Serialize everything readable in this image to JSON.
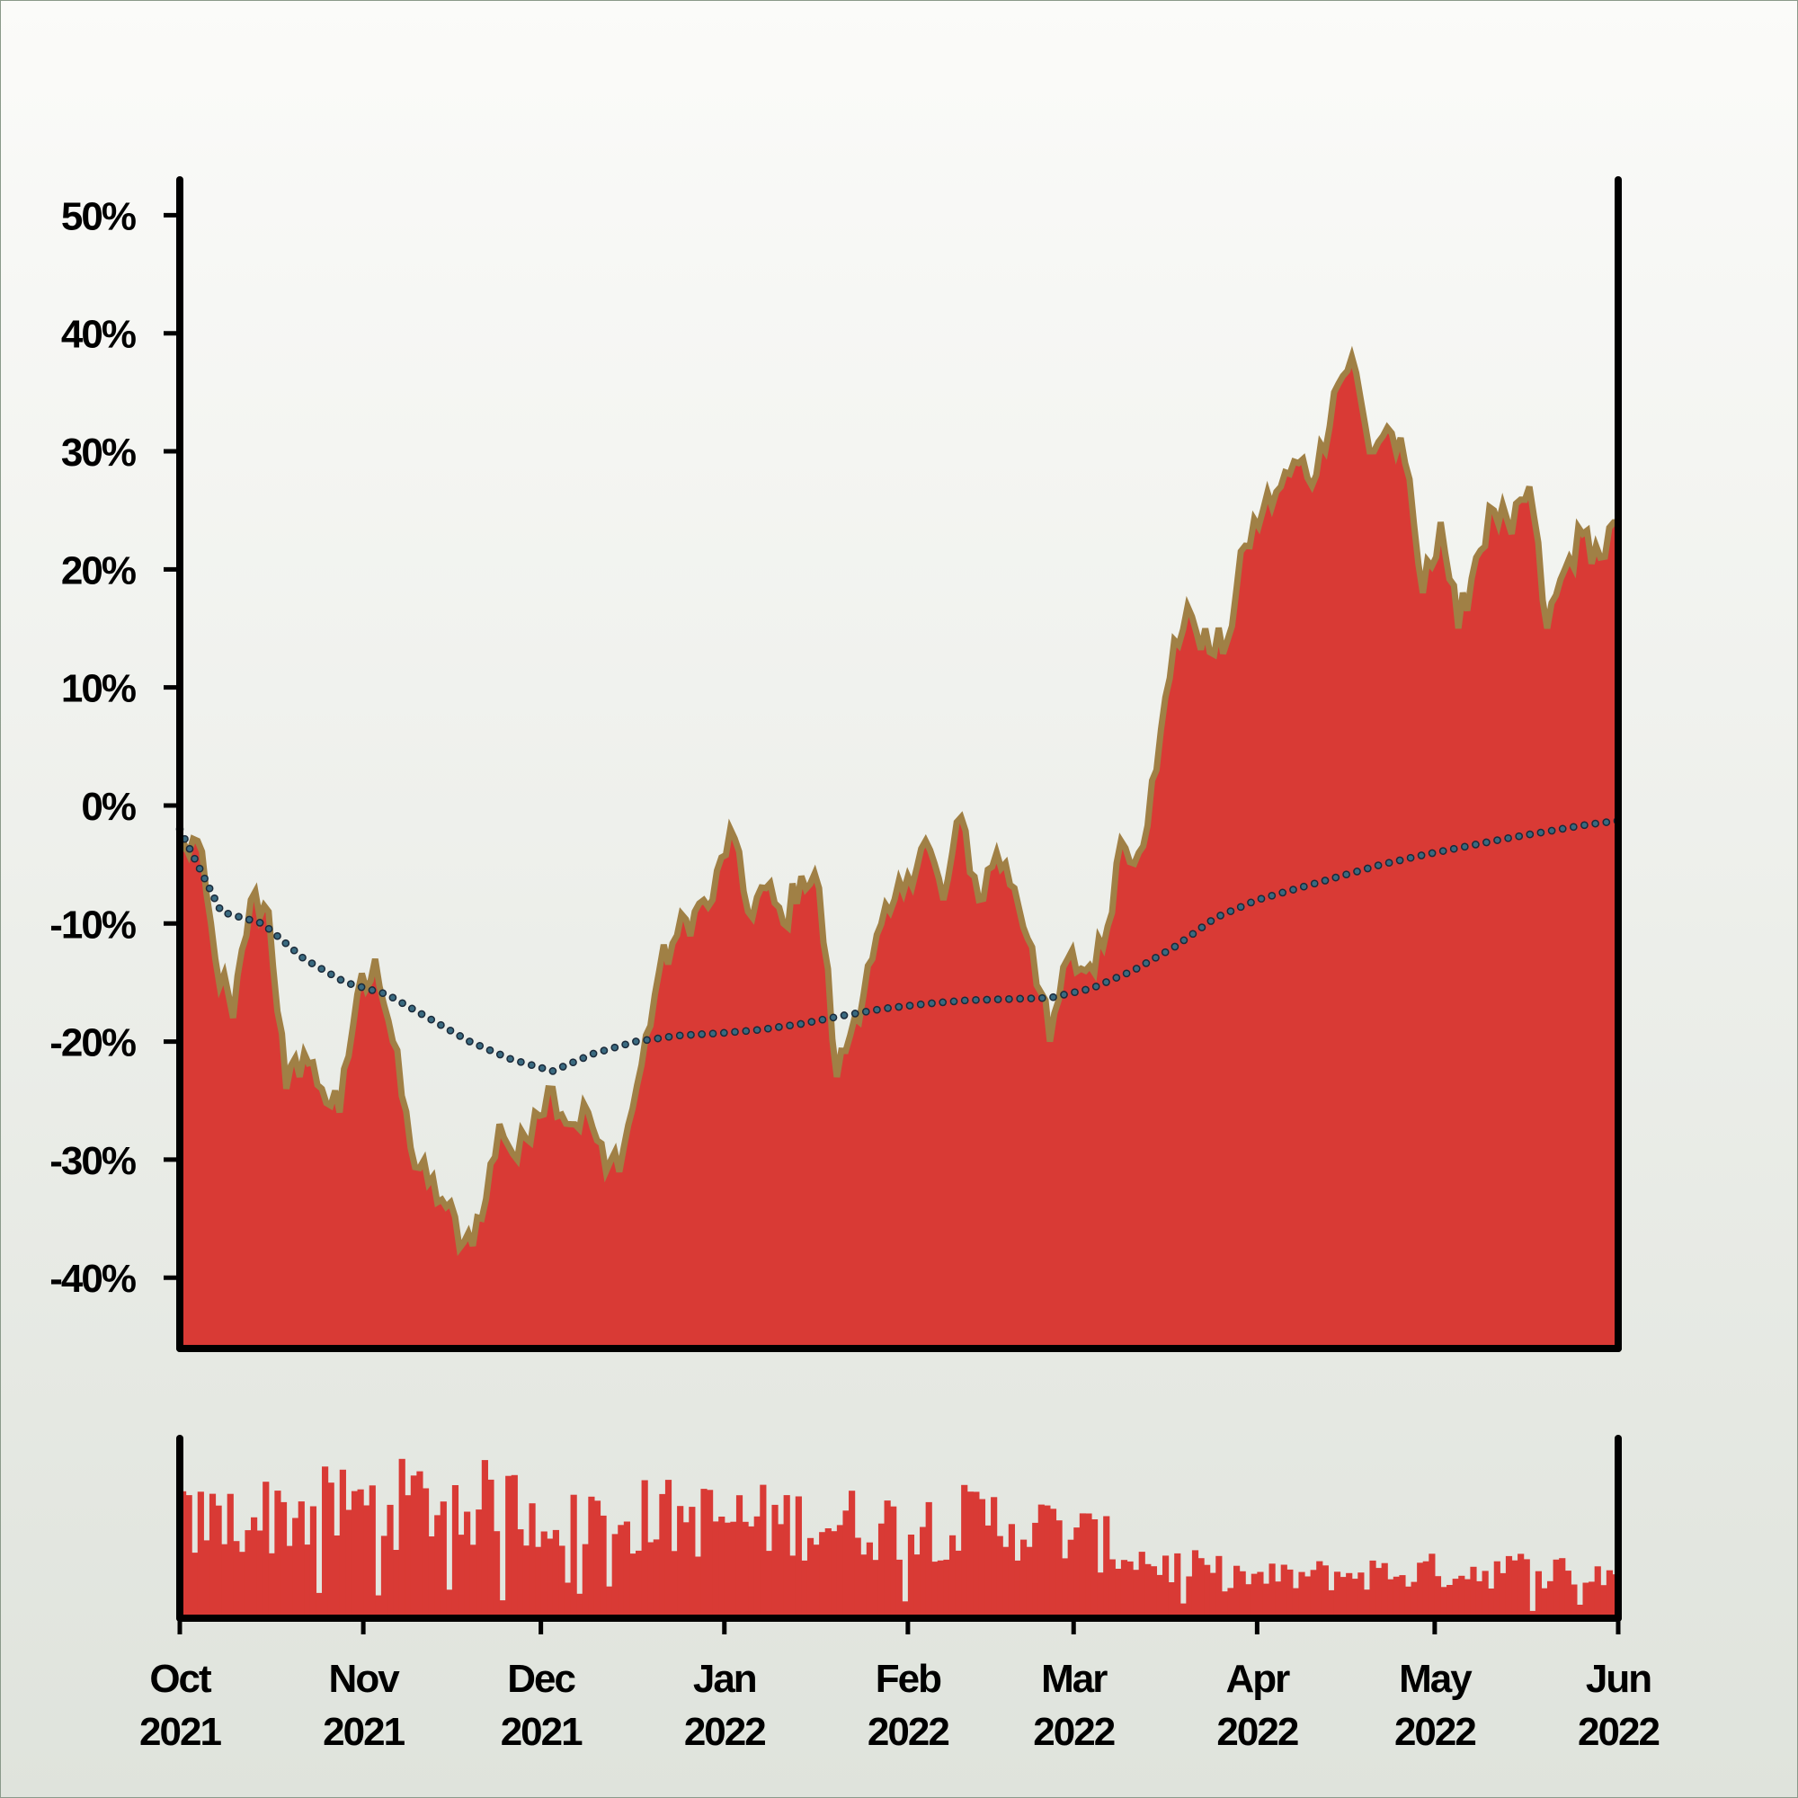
{
  "chart_data": [
    {
      "type": "area",
      "title": "",
      "xlabel": "",
      "ylabel": "",
      "xlim": [
        "2021-10-01",
        "2022-06-01"
      ],
      "ylim": [
        -46,
        53
      ],
      "yticks": [
        -40,
        -30,
        -20,
        -10,
        0,
        10,
        20,
        30,
        40,
        50
      ],
      "ytick_labels": [
        "-40%",
        "-30%",
        "-20%",
        "-10%",
        "0%",
        "10%",
        "20%",
        "30%",
        "40%",
        "50%"
      ],
      "grid": false,
      "legend": "none",
      "series": [
        {
          "kind": "area",
          "fill_color": "#d93a35",
          "edge_color": "#a08045",
          "x": [
            "2021-10-01",
            "2021-10-04",
            "2021-10-07",
            "2021-10-10",
            "2021-10-13",
            "2021-10-16",
            "2021-10-19",
            "2021-10-22",
            "2021-10-25",
            "2021-10-28",
            "2021-10-31",
            "2021-11-03",
            "2021-11-06",
            "2021-11-09",
            "2021-11-12",
            "2021-11-15",
            "2021-11-18",
            "2021-11-21",
            "2021-11-24",
            "2021-11-27",
            "2021-11-30",
            "2021-12-03",
            "2021-12-06",
            "2021-12-09",
            "2021-12-12",
            "2021-12-15",
            "2021-12-18",
            "2021-12-21",
            "2021-12-24",
            "2021-12-27",
            "2021-12-30",
            "2022-01-02",
            "2022-01-05",
            "2022-01-08",
            "2022-01-11",
            "2022-01-14",
            "2022-01-17",
            "2022-01-20",
            "2022-01-23",
            "2022-01-26",
            "2022-01-29",
            "2022-02-01",
            "2022-02-04",
            "2022-02-07",
            "2022-02-10",
            "2022-02-13",
            "2022-02-16",
            "2022-02-19",
            "2022-02-22",
            "2022-02-25",
            "2022-02-28",
            "2022-03-03",
            "2022-03-06",
            "2022-03-09",
            "2022-03-12",
            "2022-03-15",
            "2022-03-18",
            "2022-03-21",
            "2022-03-24",
            "2022-03-27",
            "2022-03-30",
            "2022-04-02",
            "2022-04-05",
            "2022-04-08",
            "2022-04-11",
            "2022-04-14",
            "2022-04-17",
            "2022-04-20",
            "2022-04-23",
            "2022-04-26",
            "2022-04-29",
            "2022-05-02",
            "2022-05-05",
            "2022-05-08",
            "2022-05-11",
            "2022-05-14",
            "2022-05-17",
            "2022-05-20",
            "2022-05-23",
            "2022-05-26",
            "2022-05-29",
            "2022-06-01"
          ],
          "values": [
            -4,
            -3,
            -13,
            -18,
            -8,
            -9,
            -24,
            -21,
            -24,
            -26,
            -16,
            -13,
            -20,
            -29,
            -32,
            -34,
            -37,
            -35,
            -27,
            -30,
            -26,
            -24,
            -27,
            -26,
            -31,
            -29,
            -22,
            -14,
            -11,
            -9,
            -8,
            -2,
            -9,
            -7,
            -10,
            -6,
            -7,
            -23,
            -18,
            -13,
            -9,
            -6,
            -3,
            -8,
            -1,
            -8,
            -4,
            -7,
            -12,
            -20,
            -13,
            -14,
            -12,
            -3,
            -4,
            3,
            14,
            16,
            13,
            14,
            22,
            25,
            27,
            29,
            28,
            35,
            38,
            30,
            32,
            29,
            18,
            24,
            15,
            21,
            25,
            23,
            27,
            15,
            20,
            23,
            21,
            24
          ]
        },
        {
          "kind": "dotted-line",
          "color": "#1a2a3a",
          "x": [
            "2021-10-01",
            "2021-10-08",
            "2021-10-15",
            "2021-10-22",
            "2021-10-29",
            "2021-11-05",
            "2021-11-12",
            "2021-11-19",
            "2021-11-26",
            "2021-12-03",
            "2021-12-10",
            "2021-12-17",
            "2021-12-24",
            "2021-12-31",
            "2022-01-07",
            "2022-01-14",
            "2022-01-21",
            "2022-01-28",
            "2022-02-04",
            "2022-02-11",
            "2022-02-18",
            "2022-02-25",
            "2022-03-04",
            "2022-03-11",
            "2022-03-18",
            "2022-03-25",
            "2022-04-01",
            "2022-04-08",
            "2022-04-15",
            "2022-04-22",
            "2022-04-29",
            "2022-05-06",
            "2022-05-13",
            "2022-05-20",
            "2022-05-27",
            "2022-06-01"
          ],
          "values": [
            -2,
            -9,
            -10,
            -13,
            -15,
            -16,
            -18,
            -20,
            -21.5,
            -22.5,
            -21,
            -20,
            -19.5,
            -19.3,
            -19,
            -18.5,
            -17.8,
            -17.2,
            -16.8,
            -16.5,
            -16.4,
            -16.3,
            -15.5,
            -14,
            -12,
            -9.5,
            -8,
            -7,
            -6,
            -5,
            -4.2,
            -3.5,
            -2.8,
            -2.2,
            -1.6,
            -1.3
          ]
        }
      ]
    },
    {
      "type": "bar",
      "title": "",
      "xlabel": "",
      "ylabel": "",
      "xlim": [
        "2021-10-01",
        "2022-06-01"
      ],
      "ylim": [
        0,
        170
      ],
      "grid": false,
      "legend": "none",
      "color": "#d93a35",
      "xtick_labels": [
        [
          "Oct",
          "2021"
        ],
        [
          "Nov",
          "2021"
        ],
        [
          "Dec",
          "2021"
        ],
        [
          "Jan",
          "2022"
        ],
        [
          "Feb",
          "2022"
        ],
        [
          "Mar",
          "2022"
        ],
        [
          "Apr",
          "2022"
        ],
        [
          "May",
          "2022"
        ],
        [
          "Jun",
          "2022"
        ]
      ],
      "xticks": [
        "2021-10-01",
        "2021-11-01",
        "2021-12-01",
        "2022-01-01",
        "2022-02-01",
        "2022-03-01",
        "2022-04-01",
        "2022-05-01",
        "2022-06-01"
      ],
      "envelope_x": [
        "2021-10-01",
        "2021-10-15",
        "2021-11-01",
        "2021-11-15",
        "2021-12-01",
        "2021-12-15",
        "2022-01-01",
        "2022-01-15",
        "2022-02-01",
        "2022-02-15",
        "2022-03-01",
        "2022-03-15",
        "2022-04-01",
        "2022-04-15",
        "2022-05-01",
        "2022-05-15",
        "2022-06-01"
      ],
      "envelope_values": [
        95,
        105,
        115,
        120,
        110,
        105,
        100,
        98,
        95,
        100,
        85,
        55,
        40,
        45,
        48,
        50,
        45
      ]
    }
  ]
}
